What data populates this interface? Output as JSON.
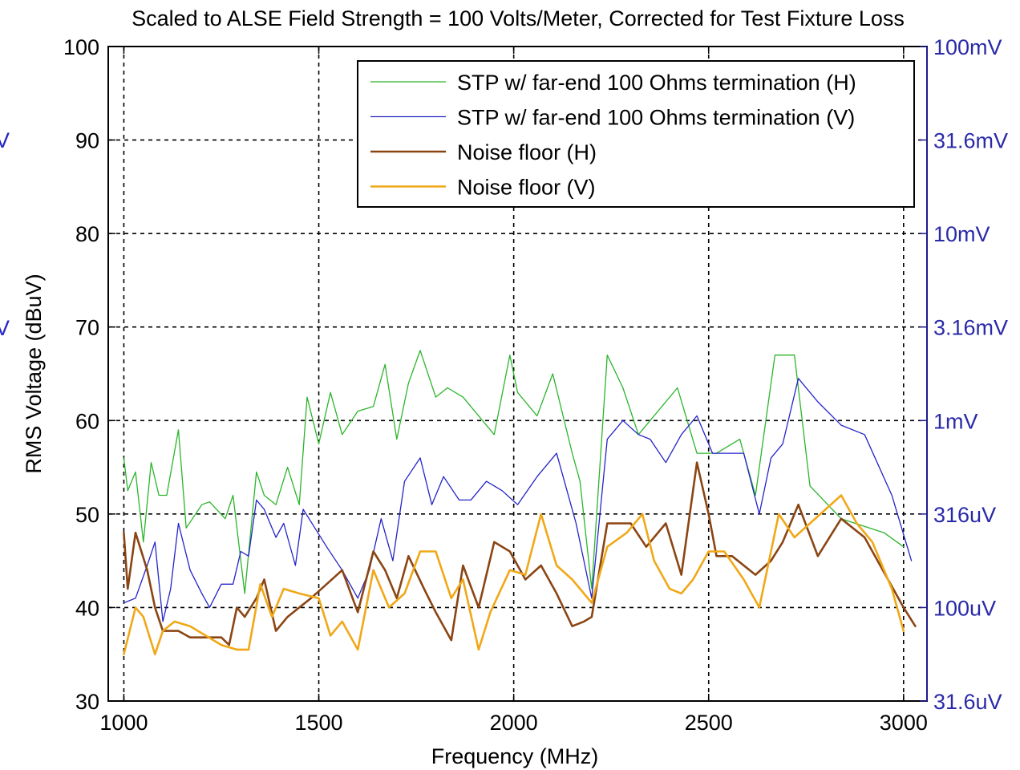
{
  "chart_data": {
    "type": "line",
    "title": "Scaled to ALSE Field Strength = 100 Volts/Meter, Corrected for Test Fixture Loss",
    "xlabel": "Frequency (MHz)",
    "ylabel": "RMS Voltage (dBuV)",
    "xlim": [
      960,
      3060
    ],
    "ylim": [
      30,
      100
    ],
    "x_ticks": [
      "1000",
      "1500",
      "2000",
      "2500",
      "3000"
    ],
    "y_ticks": [
      "30",
      "40",
      "50",
      "60",
      "70",
      "80",
      "90",
      "100"
    ],
    "y2_ticks": [
      "31.6uV",
      "100uV",
      "316uV",
      "1mV",
      "3.16mV",
      "10mV",
      "31.6mV",
      "100mV"
    ],
    "grid": true,
    "legend_position": "top-right",
    "left_edge_glyphs": [
      "V",
      "V"
    ],
    "series": [
      {
        "name": "STP w/ far-end 100 Ohms termination (H)",
        "color": "#2bb52b",
        "width": 1.3,
        "points": [
          [
            1000,
            56
          ],
          [
            1010,
            52.5
          ],
          [
            1030,
            54.5
          ],
          [
            1050,
            47
          ],
          [
            1070,
            55.5
          ],
          [
            1090,
            52
          ],
          [
            1110,
            52
          ],
          [
            1140,
            59
          ],
          [
            1160,
            48.5
          ],
          [
            1200,
            51
          ],
          [
            1220,
            51.3
          ],
          [
            1260,
            49.5
          ],
          [
            1280,
            52
          ],
          [
            1310,
            41.5
          ],
          [
            1340,
            54.5
          ],
          [
            1360,
            52
          ],
          [
            1390,
            51
          ],
          [
            1420,
            55
          ],
          [
            1450,
            51
          ],
          [
            1470,
            62.5
          ],
          [
            1500,
            57.5
          ],
          [
            1530,
            63
          ],
          [
            1560,
            58.5
          ],
          [
            1600,
            61
          ],
          [
            1640,
            61.5
          ],
          [
            1670,
            66
          ],
          [
            1700,
            58
          ],
          [
            1730,
            64
          ],
          [
            1760,
            67.5
          ],
          [
            1800,
            62.5
          ],
          [
            1830,
            63.5
          ],
          [
            1870,
            62.5
          ],
          [
            1950,
            58.5
          ],
          [
            1990,
            67
          ],
          [
            2010,
            63
          ],
          [
            2060,
            60.5
          ],
          [
            2100,
            65
          ],
          [
            2150,
            56.5
          ],
          [
            2170,
            53.5
          ],
          [
            2200,
            42
          ],
          [
            2240,
            67
          ],
          [
            2280,
            63.5
          ],
          [
            2320,
            58.5
          ],
          [
            2380,
            61.5
          ],
          [
            2420,
            63.5
          ],
          [
            2470,
            56.5
          ],
          [
            2520,
            56.5
          ],
          [
            2580,
            58
          ],
          [
            2620,
            52
          ],
          [
            2670,
            67
          ],
          [
            2720,
            67
          ],
          [
            2760,
            53
          ],
          [
            2840,
            49.5
          ],
          [
            2950,
            48
          ],
          [
            3000,
            46.5
          ]
        ]
      },
      {
        "name": "STP w/ far-end 100 Ohms termination (V)",
        "color": "#2424c8",
        "width": 1.3,
        "points": [
          [
            1000,
            40.5
          ],
          [
            1030,
            41
          ],
          [
            1060,
            44.5
          ],
          [
            1080,
            47
          ],
          [
            1100,
            38.5
          ],
          [
            1120,
            42
          ],
          [
            1140,
            49
          ],
          [
            1170,
            44
          ],
          [
            1200,
            41.5
          ],
          [
            1220,
            40
          ],
          [
            1250,
            42.5
          ],
          [
            1280,
            42.5
          ],
          [
            1300,
            46
          ],
          [
            1320,
            45.5
          ],
          [
            1340,
            51.5
          ],
          [
            1360,
            50.5
          ],
          [
            1390,
            47.5
          ],
          [
            1410,
            49
          ],
          [
            1440,
            44.5
          ],
          [
            1460,
            50.5
          ],
          [
            1490,
            48.5
          ],
          [
            1520,
            46.5
          ],
          [
            1560,
            44
          ],
          [
            1600,
            41
          ],
          [
            1630,
            44
          ],
          [
            1660,
            49.5
          ],
          [
            1690,
            45
          ],
          [
            1720,
            53.5
          ],
          [
            1760,
            56
          ],
          [
            1790,
            51
          ],
          [
            1820,
            54
          ],
          [
            1860,
            51.5
          ],
          [
            1890,
            51.5
          ],
          [
            1930,
            53.5
          ],
          [
            1970,
            52.5
          ],
          [
            2010,
            51
          ],
          [
            2060,
            54
          ],
          [
            2110,
            56.5
          ],
          [
            2160,
            49
          ],
          [
            2200,
            41
          ],
          [
            2240,
            58
          ],
          [
            2280,
            60
          ],
          [
            2320,
            58.5
          ],
          [
            2350,
            58
          ],
          [
            2390,
            55.5
          ],
          [
            2430,
            58.5
          ],
          [
            2470,
            60.5
          ],
          [
            2510,
            56.5
          ],
          [
            2560,
            56.5
          ],
          [
            2590,
            56.5
          ],
          [
            2630,
            50
          ],
          [
            2660,
            56
          ],
          [
            2690,
            57.5
          ],
          [
            2730,
            64.5
          ],
          [
            2780,
            62
          ],
          [
            2840,
            59.5
          ],
          [
            2900,
            58.5
          ],
          [
            2970,
            52
          ],
          [
            3020,
            45
          ]
        ]
      },
      {
        "name": "Noise floor (H)",
        "color": "#8b4513",
        "width": 2.6,
        "points": [
          [
            1000,
            48
          ],
          [
            1010,
            42
          ],
          [
            1030,
            48
          ],
          [
            1060,
            44
          ],
          [
            1080,
            40
          ],
          [
            1100,
            37.5
          ],
          [
            1140,
            37.5
          ],
          [
            1170,
            36.8
          ],
          [
            1200,
            36.8
          ],
          [
            1250,
            36.8
          ],
          [
            1270,
            36
          ],
          [
            1290,
            40
          ],
          [
            1310,
            39
          ],
          [
            1340,
            41
          ],
          [
            1360,
            43
          ],
          [
            1390,
            37.5
          ],
          [
            1420,
            39
          ],
          [
            1450,
            40
          ],
          [
            1480,
            41
          ],
          [
            1520,
            42.5
          ],
          [
            1560,
            44
          ],
          [
            1600,
            39.5
          ],
          [
            1640,
            46
          ],
          [
            1670,
            44
          ],
          [
            1700,
            41
          ],
          [
            1730,
            45.5
          ],
          [
            1770,
            42
          ],
          [
            1800,
            39.5
          ],
          [
            1840,
            36.5
          ],
          [
            1870,
            44.5
          ],
          [
            1910,
            40
          ],
          [
            1950,
            47
          ],
          [
            1990,
            46
          ],
          [
            2030,
            43
          ],
          [
            2070,
            44.5
          ],
          [
            2110,
            41.5
          ],
          [
            2150,
            38
          ],
          [
            2180,
            38.5
          ],
          [
            2200,
            39
          ],
          [
            2240,
            49
          ],
          [
            2280,
            49
          ],
          [
            2300,
            49
          ],
          [
            2340,
            46.5
          ],
          [
            2390,
            49
          ],
          [
            2430,
            43.5
          ],
          [
            2470,
            55.5
          ],
          [
            2500,
            50
          ],
          [
            2520,
            45.5
          ],
          [
            2560,
            45.5
          ],
          [
            2620,
            43.5
          ],
          [
            2660,
            45
          ],
          [
            2690,
            47
          ],
          [
            2730,
            51
          ],
          [
            2780,
            45.5
          ],
          [
            2840,
            49.5
          ],
          [
            2900,
            47.5
          ],
          [
            2960,
            43
          ],
          [
            3000,
            40
          ],
          [
            3030,
            38
          ]
        ]
      },
      {
        "name": "Noise floor (V)",
        "color": "#f0a818",
        "width": 2.6,
        "points": [
          [
            1000,
            35
          ],
          [
            1030,
            40
          ],
          [
            1050,
            39
          ],
          [
            1080,
            35
          ],
          [
            1100,
            37.5
          ],
          [
            1130,
            38.5
          ],
          [
            1170,
            38
          ],
          [
            1210,
            37
          ],
          [
            1250,
            36
          ],
          [
            1290,
            35.5
          ],
          [
            1320,
            35.5
          ],
          [
            1350,
            42.5
          ],
          [
            1380,
            39
          ],
          [
            1410,
            42
          ],
          [
            1450,
            41.5
          ],
          [
            1500,
            41
          ],
          [
            1530,
            37
          ],
          [
            1560,
            38.5
          ],
          [
            1600,
            35.5
          ],
          [
            1640,
            44
          ],
          [
            1680,
            40
          ],
          [
            1720,
            41.5
          ],
          [
            1760,
            46
          ],
          [
            1800,
            46
          ],
          [
            1840,
            41
          ],
          [
            1870,
            43
          ],
          [
            1910,
            35.5
          ],
          [
            1940,
            39.5
          ],
          [
            1990,
            44
          ],
          [
            2030,
            43.5
          ],
          [
            2070,
            50
          ],
          [
            2110,
            44.5
          ],
          [
            2150,
            43
          ],
          [
            2200,
            40.5
          ],
          [
            2240,
            46.5
          ],
          [
            2290,
            48
          ],
          [
            2330,
            50
          ],
          [
            2360,
            45
          ],
          [
            2400,
            42
          ],
          [
            2430,
            41.5
          ],
          [
            2460,
            43
          ],
          [
            2500,
            46
          ],
          [
            2540,
            46
          ],
          [
            2590,
            43
          ],
          [
            2630,
            40
          ],
          [
            2680,
            50
          ],
          [
            2720,
            47.5
          ],
          [
            2760,
            49
          ],
          [
            2800,
            50.5
          ],
          [
            2840,
            52
          ],
          [
            2880,
            49
          ],
          [
            2920,
            47
          ],
          [
            2970,
            42
          ],
          [
            3000,
            37.5
          ]
        ]
      }
    ]
  }
}
